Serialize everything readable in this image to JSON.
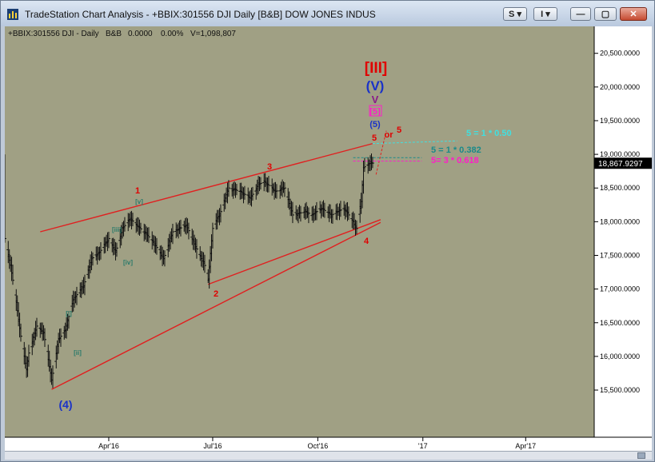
{
  "window": {
    "title": "TradeStation Chart Analysis - +BBIX:301556 DJI Daily [B&B] DOW JONES INDUS",
    "buttons": {
      "s": "S",
      "i": "I",
      "minimize": "—",
      "maximize": "▢",
      "close": "✕"
    },
    "caret": "▾"
  },
  "header": {
    "symbol": "+BBIX:301556 DJI - Daily",
    "study": "B&B",
    "change": "0.0000",
    "pct": "0.00%",
    "volume": "V=1,098,807"
  },
  "colors": {
    "plot_bg": "#a0a084",
    "trendline": "#e02020",
    "bars": "#111111",
    "price_label_bg": "#000000"
  },
  "chart_data": {
    "type": "bar",
    "title": "",
    "xlabel": "",
    "ylabel": "",
    "ylim": [
      14800,
      20900
    ],
    "xlim": [
      "2016-01-01",
      "2017-05-31"
    ],
    "y_ticks": [
      {
        "v": 15500,
        "label": "15,500.0000"
      },
      {
        "v": 16000,
        "label": "16,000.0000"
      },
      {
        "v": 16500,
        "label": "16,500.0000"
      },
      {
        "v": 17000,
        "label": "17,000.0000"
      },
      {
        "v": 17500,
        "label": "17,500.0000"
      },
      {
        "v": 18000,
        "label": "18,000.0000"
      },
      {
        "v": 18500,
        "label": "18,500.0000"
      },
      {
        "v": 19000,
        "label": "19,000.0000"
      },
      {
        "v": 19500,
        "label": "19,500.0000"
      },
      {
        "v": 20000,
        "label": "20,000.0000"
      },
      {
        "v": 20500,
        "label": "20,500.0000"
      }
    ],
    "x_ticks": [
      {
        "date": "2016-04-01",
        "label": "Apr'16"
      },
      {
        "date": "2016-07-01",
        "label": "Jul'16"
      },
      {
        "date": "2016-10-01",
        "label": "Oct'16"
      },
      {
        "date": "2017-01-01",
        "label": "'17"
      },
      {
        "date": "2017-04-01",
        "label": "Apr'17"
      }
    ],
    "last_price": {
      "v": 18867.9297,
      "label": "18,867.9297"
    },
    "series": [
      {
        "pivots": [
          [
            "2016-01-01",
            17750
          ],
          [
            "2016-01-06",
            17350
          ],
          [
            "2016-01-11",
            16800
          ],
          [
            "2016-01-15",
            16300
          ],
          [
            "2016-01-20",
            15800
          ],
          [
            "2016-01-22",
            16050
          ],
          [
            "2016-01-29",
            16450
          ],
          [
            "2016-02-04",
            16350
          ],
          [
            "2016-02-11",
            15650
          ],
          [
            "2016-02-17",
            16250
          ],
          [
            "2016-02-23",
            16400
          ],
          [
            "2016-03-01",
            16850
          ],
          [
            "2016-03-10",
            17050
          ],
          [
            "2016-03-17",
            17450
          ],
          [
            "2016-03-24",
            17550
          ],
          [
            "2016-04-01",
            17750
          ],
          [
            "2016-04-07",
            17550
          ],
          [
            "2016-04-13",
            17900
          ],
          [
            "2016-04-20",
            18050
          ],
          [
            "2016-04-25",
            17950
          ],
          [
            "2016-05-02",
            17850
          ],
          [
            "2016-05-10",
            17700
          ],
          [
            "2016-05-19",
            17450
          ],
          [
            "2016-05-27",
            17850
          ],
          [
            "2016-06-08",
            17950
          ],
          [
            "2016-06-14",
            17700
          ],
          [
            "2016-06-24",
            17350
          ],
          [
            "2016-06-27",
            17150
          ],
          [
            "2016-07-01",
            17900
          ],
          [
            "2016-07-08",
            18150
          ],
          [
            "2016-07-15",
            18500
          ],
          [
            "2016-07-25",
            18450
          ],
          [
            "2016-08-03",
            18350
          ],
          [
            "2016-08-10",
            18550
          ],
          [
            "2016-08-15",
            18600
          ],
          [
            "2016-08-25",
            18450
          ],
          [
            "2016-09-02",
            18500
          ],
          [
            "2016-09-09",
            18100
          ],
          [
            "2016-09-20",
            18150
          ],
          [
            "2016-09-26",
            18100
          ],
          [
            "2016-10-04",
            18200
          ],
          [
            "2016-10-13",
            18100
          ],
          [
            "2016-10-24",
            18200
          ],
          [
            "2016-11-01",
            18000
          ],
          [
            "2016-11-04",
            17900
          ],
          [
            "2016-11-08",
            18300
          ],
          [
            "2016-11-10",
            18800
          ],
          [
            "2016-11-14",
            18860
          ],
          [
            "2016-11-18",
            18870
          ]
        ]
      }
    ]
  },
  "annotations": {
    "w_iii_big": "[III]",
    "w_v_paren": "(V)",
    "w_v": "V",
    "w_5_box": "[5]",
    "w_5_paren": "(5)",
    "w_or": "or",
    "w_5_red_a": "5",
    "w_5_red_b": "5",
    "w_3": "3",
    "w_1": "1",
    "w_2": "2",
    "w_4": "4",
    "w_4_paren": "(4)",
    "w_v_box": "[v]",
    "w_iii_box": "[iii]",
    "w_iv_box": "[iv]",
    "w_i_box": "[i]",
    "w_ii_box": "[ii]",
    "fib_cyan": "5 = 1 * 0.50",
    "fib_teal": "5 = 1 * 0.382",
    "fib_magenta": "5= 3 * 0.618"
  }
}
